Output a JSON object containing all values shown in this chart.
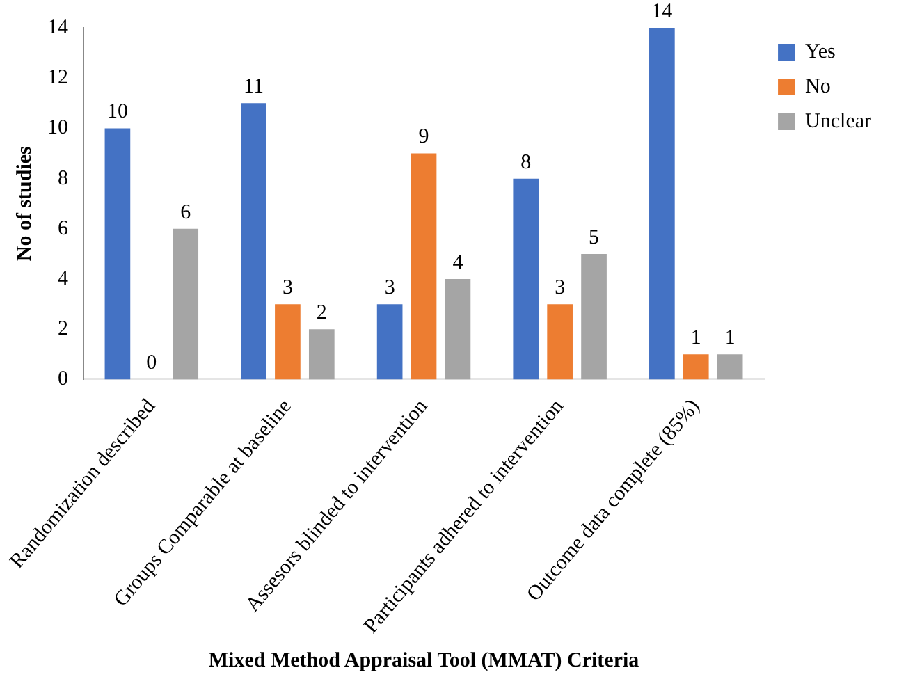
{
  "chart_data": {
    "type": "bar",
    "xlabel": "Mixed Method Appraisal Tool (MMAT) Criteria",
    "ylabel": "No of studies",
    "categories": [
      "Randomization described",
      "Groups Comparable at baseline",
      "Assesors blinded to intervention",
      "Participants adhered to intervention",
      "Outcome data complete (85%)"
    ],
    "series": [
      {
        "name": "Yes",
        "color": "#4472c4",
        "values": [
          10,
          11,
          3,
          8,
          14
        ]
      },
      {
        "name": "No",
        "color": "#ed7d31",
        "values": [
          0,
          3,
          9,
          3,
          1
        ]
      },
      {
        "name": "Unclear",
        "color": "#a5a5a5",
        "values": [
          6,
          2,
          4,
          5,
          1
        ]
      }
    ],
    "ylim": [
      0,
      14
    ],
    "yticks": [
      0,
      2,
      4,
      6,
      8,
      10,
      12,
      14
    ],
    "grid": false,
    "legend": "top right",
    "data_labels": true
  }
}
